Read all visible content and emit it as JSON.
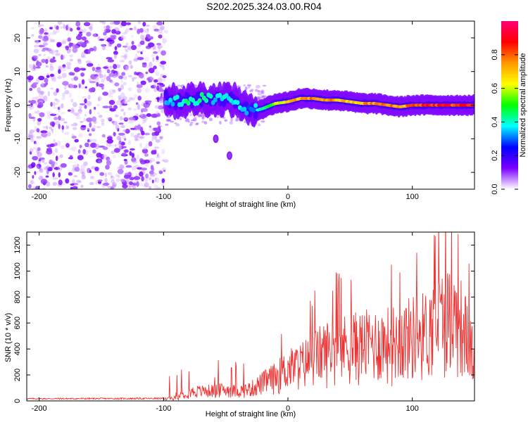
{
  "figure": {
    "title": "S202.2025.324.03.00.R04"
  },
  "chart_data": [
    {
      "type": "heatmap",
      "xlabel": "Height of straight line (km)",
      "ylabel": "Frequency (Hz)",
      "xlim": [
        -210,
        150
      ],
      "ylim": [
        -25,
        25
      ],
      "xticks": [
        -200,
        -100,
        0,
        100
      ],
      "xtick_labels": [
        "-200",
        "-100",
        "0",
        "100"
      ],
      "yticks": [
        -20,
        -10,
        0,
        10,
        20
      ],
      "ytick_labels": [
        "-20",
        "-10",
        "0",
        "10",
        "20"
      ],
      "colorbar": {
        "label": "Normalized spectral amplitude",
        "range": [
          0,
          1
        ],
        "ticks": [
          0.0,
          0.2,
          0.4,
          0.6,
          0.8
        ],
        "tick_labels": [
          "0.0",
          "0.2",
          "0.4",
          "0.6",
          "0.8"
        ],
        "stops": [
          "#ffffff",
          "#7a00ff",
          "#0000ff",
          "#00ffff",
          "#00ff00",
          "#ffff00",
          "#ff9900",
          "#ff0000",
          "#ff0077"
        ]
      },
      "noise_region_x": [
        -208,
        -98
      ],
      "ridge": {
        "x": [
          -98,
          -90,
          -80,
          -70,
          -60,
          -50,
          -40,
          -30,
          -20,
          -10,
          0,
          10,
          20,
          30,
          40,
          50,
          60,
          70,
          80,
          90,
          100,
          110,
          120,
          130,
          140,
          150
        ],
        "y": [
          2,
          1,
          1.5,
          2,
          1.5,
          2,
          1,
          -2,
          -1,
          0.5,
          1,
          2,
          2,
          1.5,
          1.5,
          1,
          0.5,
          0.5,
          0,
          -0.5,
          0,
          0,
          0,
          0,
          0,
          0
        ],
        "amp": [
          0.35,
          0.4,
          0.45,
          0.45,
          0.4,
          0.4,
          0.4,
          0.3,
          0.45,
          0.6,
          0.7,
          0.75,
          0.8,
          0.8,
          0.75,
          0.7,
          0.75,
          0.8,
          0.8,
          0.75,
          0.85,
          0.9,
          0.9,
          0.9,
          0.9,
          0.9
        ]
      },
      "side_blobs": [
        {
          "x": -58,
          "y": -10,
          "amp": 0.25
        },
        {
          "x": -47,
          "y": -15,
          "amp": 0.25
        }
      ]
    },
    {
      "type": "line",
      "xlabel": "Height of straight line (km)",
      "ylabel": "SNR (10 * v/v)",
      "xlim": [
        -210,
        150
      ],
      "ylim": [
        0,
        1300
      ],
      "xticks": [
        -200,
        -100,
        0,
        100
      ],
      "xtick_labels": [
        "-200",
        "-100",
        "0",
        "100"
      ],
      "yticks": [
        0,
        200,
        400,
        600,
        800,
        1000,
        1200
      ],
      "ytick_labels": [
        "0",
        "200",
        "400",
        "600",
        "800",
        "1000",
        "1200"
      ],
      "color": "#ee3333",
      "envelope": {
        "x": [
          -210,
          -100,
          -90,
          -80,
          -70,
          -60,
          -50,
          -40,
          -30,
          -20,
          -10,
          0,
          10,
          20,
          30,
          40,
          50,
          60,
          70,
          80,
          90,
          100,
          110,
          115,
          120,
          130,
          140,
          150
        ],
        "y": [
          22,
          25,
          40,
          110,
          120,
          130,
          140,
          120,
          150,
          230,
          300,
          400,
          450,
          540,
          620,
          660,
          680,
          700,
          720,
          730,
          760,
          820,
          850,
          900,
          1000,
          1050,
          950,
          520
        ]
      }
    }
  ]
}
